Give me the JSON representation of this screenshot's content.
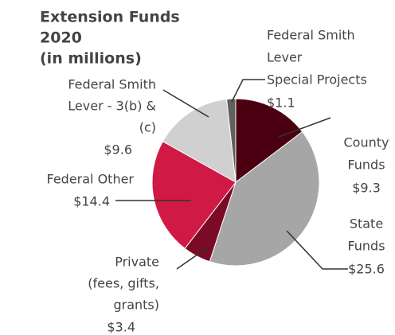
{
  "chart_data": {
    "type": "pie",
    "title": [
      "Extension Funds",
      "2020",
      "(in millions)"
    ],
    "categories": [
      [
        "County",
        "Funds"
      ],
      [
        "State",
        "Funds"
      ],
      [
        "Private",
        "(fees, gifts,",
        "grants)"
      ],
      [
        "Federal Other"
      ],
      [
        "Federal Smith",
        "Lever - 3(b) &",
        "(c)"
      ],
      [
        "Federal Smith",
        "Lever",
        "Special Projects"
      ]
    ],
    "values": [
      9.3,
      25.6,
      3.4,
      14.4,
      9.6,
      1.1
    ],
    "value_labels": [
      "$9.3",
      "$25.6",
      "$3.4",
      "$14.4",
      "$9.6",
      "$1.1"
    ],
    "colors": [
      "#4a0010",
      "#a6a6a6",
      "#7a0a26",
      "#d01a45",
      "#d0d0d0",
      "#606060"
    ]
  }
}
